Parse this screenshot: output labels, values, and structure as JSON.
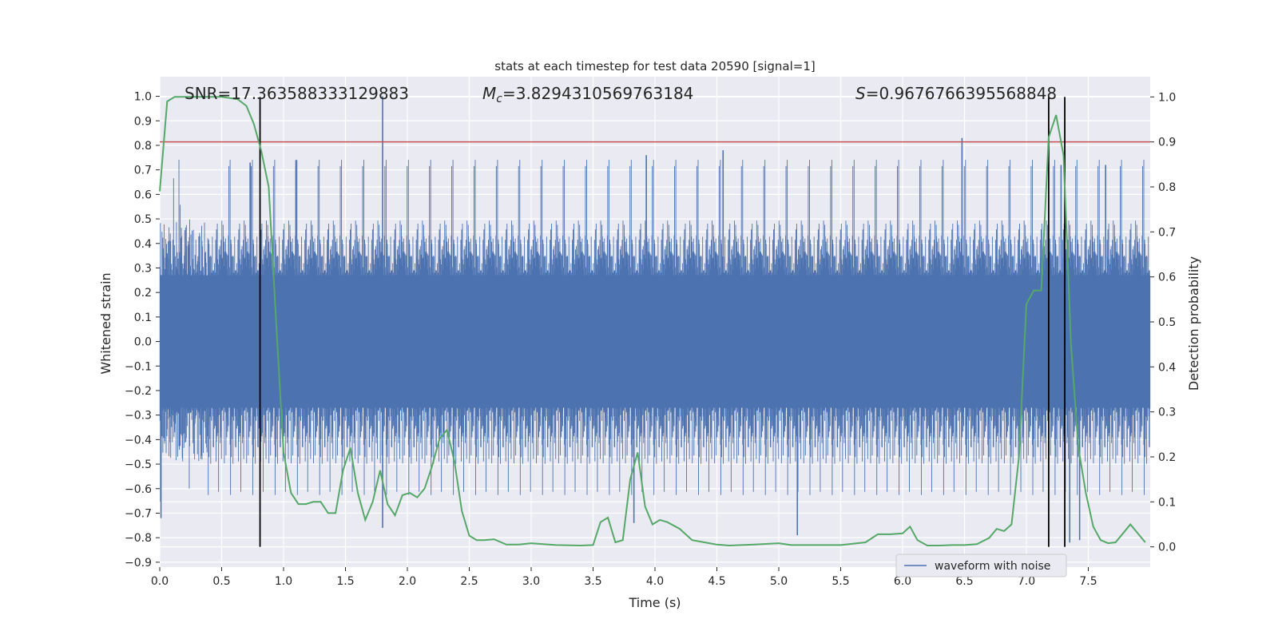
{
  "chart_data": {
    "type": "line",
    "title": "stats at each timestep for test data 20590 [signal=1]",
    "xlabel": "Time (s)",
    "ylabel": "Whitened strain",
    "y2label": "Detection probability",
    "xlim": [
      0.0,
      8.0
    ],
    "ylim": [
      -0.92,
      1.08
    ],
    "y2lim": [
      -0.045,
      1.045
    ],
    "xticks": [
      0.0,
      0.5,
      1.0,
      1.5,
      2.0,
      2.5,
      3.0,
      3.5,
      4.0,
      4.5,
      5.0,
      5.5,
      6.0,
      6.5,
      7.0,
      7.5
    ],
    "xtick_labels": [
      "0.0",
      "0.5",
      "1.0",
      "1.5",
      "2.0",
      "2.5",
      "3.0",
      "3.5",
      "4.0",
      "4.5",
      "5.0",
      "5.5",
      "6.0",
      "6.5",
      "7.0",
      "7.5"
    ],
    "yticks": [
      -0.9,
      -0.8,
      -0.7,
      -0.6,
      -0.5,
      -0.4,
      -0.3,
      -0.2,
      -0.1,
      0.0,
      0.1,
      0.2,
      0.3,
      0.4,
      0.5,
      0.6,
      0.7,
      0.8,
      0.9,
      1.0
    ],
    "ytick_labels": [
      "−0.9",
      "−0.8",
      "−0.7",
      "−0.6",
      "−0.5",
      "−0.4",
      "−0.3",
      "−0.2",
      "−0.1",
      "0.0",
      "0.1",
      "0.2",
      "0.3",
      "0.4",
      "0.5",
      "0.6",
      "0.7",
      "0.8",
      "0.9",
      "1.0"
    ],
    "y2ticks": [
      0.0,
      0.1,
      0.2,
      0.3,
      0.4,
      0.5,
      0.6,
      0.7,
      0.8,
      0.9,
      1.0
    ],
    "y2tick_labels": [
      "0.0",
      "0.1",
      "0.2",
      "0.3",
      "0.4",
      "0.5",
      "0.6",
      "0.7",
      "0.8",
      "0.9",
      "1.0"
    ],
    "grid": true,
    "legend": {
      "position": "lower-right",
      "entries": [
        "waveform with noise"
      ]
    },
    "annotations": {
      "snr_text": "SNR=17.363588333129883",
      "mc_symbol": "M",
      "mc_subscript": "c",
      "mc_value": "=3.8294310569763184",
      "s_symbol": "S",
      "s_value": "=0.9676766395568848"
    },
    "series": [
      {
        "name": "waveform with noise",
        "axis": "left",
        "color": "#4c72b0",
        "style": "dense noise",
        "typical_positive_max": 0.5,
        "typical_negative_min": -0.5,
        "notable_spikes": [
          {
            "x": 1.8,
            "y": 1.0
          },
          {
            "x": 6.48,
            "y": 0.83
          },
          {
            "x": 4.55,
            "y": 0.78
          },
          {
            "x": 0.73,
            "y": 0.73
          },
          {
            "x": 1.1,
            "y": 0.74
          },
          {
            "x": 3.93,
            "y": 0.76
          },
          {
            "x": 7.28,
            "y": 0.72
          },
          {
            "x": 7.64,
            "y": 0.72
          },
          {
            "x": 0.01,
            "y": -0.72
          },
          {
            "x": 1.8,
            "y": -0.76
          },
          {
            "x": 3.83,
            "y": -0.74
          },
          {
            "x": 5.15,
            "y": -0.79
          },
          {
            "x": 7.35,
            "y": -0.82
          },
          {
            "x": 7.43,
            "y": -0.81
          }
        ]
      },
      {
        "name": "detection probability",
        "axis": "right",
        "color": "#55a868",
        "x": [
          0.0,
          0.06,
          0.12,
          0.3,
          0.5,
          0.63,
          0.7,
          0.76,
          0.82,
          0.88,
          0.94,
          1.0,
          1.06,
          1.12,
          1.18,
          1.24,
          1.3,
          1.36,
          1.42,
          1.48,
          1.54,
          1.6,
          1.66,
          1.72,
          1.78,
          1.84,
          1.9,
          1.96,
          2.02,
          2.08,
          2.14,
          2.2,
          2.26,
          2.32,
          2.38,
          2.44,
          2.5,
          2.56,
          2.62,
          2.7,
          2.8,
          2.9,
          3.0,
          3.2,
          3.4,
          3.5,
          3.56,
          3.62,
          3.68,
          3.74,
          3.8,
          3.86,
          3.92,
          3.98,
          4.04,
          4.1,
          4.2,
          4.3,
          4.4,
          4.5,
          4.6,
          4.8,
          5.0,
          5.1,
          5.2,
          5.5,
          5.7,
          5.8,
          5.9,
          6.0,
          6.06,
          6.12,
          6.2,
          6.3,
          6.4,
          6.5,
          6.6,
          6.7,
          6.76,
          6.82,
          6.88,
          6.94,
          7.0,
          7.06,
          7.12,
          7.18,
          7.24,
          7.3,
          7.36,
          7.42,
          7.48,
          7.54,
          7.6,
          7.66,
          7.72,
          7.78,
          7.84,
          7.9,
          7.96
        ],
        "values": [
          0.79,
          0.99,
          1.0,
          1.0,
          1.0,
          0.995,
          0.98,
          0.94,
          0.88,
          0.8,
          0.5,
          0.21,
          0.12,
          0.095,
          0.095,
          0.1,
          0.1,
          0.075,
          0.075,
          0.17,
          0.22,
          0.12,
          0.06,
          0.1,
          0.17,
          0.095,
          0.07,
          0.115,
          0.12,
          0.11,
          0.13,
          0.18,
          0.24,
          0.26,
          0.19,
          0.08,
          0.025,
          0.015,
          0.015,
          0.017,
          0.005,
          0.005,
          0.008,
          0.004,
          0.003,
          0.004,
          0.055,
          0.065,
          0.01,
          0.015,
          0.15,
          0.21,
          0.09,
          0.05,
          0.06,
          0.055,
          0.04,
          0.015,
          0.01,
          0.005,
          0.003,
          0.005,
          0.008,
          0.004,
          0.004,
          0.004,
          0.01,
          0.028,
          0.028,
          0.03,
          0.045,
          0.015,
          0.003,
          0.003,
          0.004,
          0.004,
          0.006,
          0.02,
          0.04,
          0.035,
          0.05,
          0.2,
          0.54,
          0.57,
          0.57,
          0.91,
          0.96,
          0.87,
          0.45,
          0.22,
          0.12,
          0.045,
          0.015,
          0.008,
          0.01,
          0.03,
          0.05,
          0.03,
          0.01
        ]
      }
    ],
    "threshold_line": {
      "axis": "right",
      "y": 0.9,
      "color": "#c44e52"
    },
    "vertical_markers": [
      {
        "x": 0.81,
        "color": "#000000"
      },
      {
        "x": 7.18,
        "color": "#000000"
      },
      {
        "x": 7.31,
        "color": "#000000"
      }
    ],
    "colors": {
      "plot_background": "#eaeaf2",
      "grid": "#ffffff",
      "waveform": "#4c72b0",
      "probability": "#55a868",
      "threshold": "#c44e52",
      "marker": "#000000"
    }
  }
}
